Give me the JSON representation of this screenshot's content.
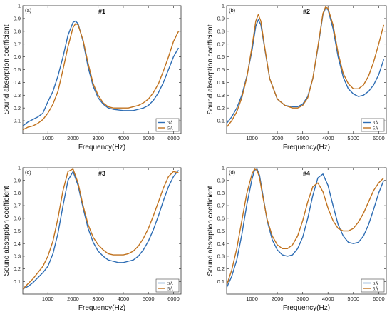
{
  "chart_data": [
    {
      "type": "line",
      "tag": "(a)",
      "title": "#1",
      "xlabel": "Frequency(Hz)",
      "ylabel": "Sound absorption coefficient",
      "xlim": [
        0,
        6300
      ],
      "ylim": [
        0,
        1
      ],
      "xticks": [
        1000,
        2000,
        3000,
        4000,
        5000,
        6000
      ],
      "yticks": [
        0.1,
        0.2,
        0.3,
        0.4,
        0.5,
        0.6,
        0.7,
        0.8,
        0.9,
        1
      ],
      "series": [
        {
          "name": "3Å",
          "color": "#2E6DB4",
          "x": [
            0,
            200,
            400,
            600,
            800,
            1000,
            1200,
            1400,
            1600,
            1800,
            2000,
            2100,
            2200,
            2400,
            2600,
            2800,
            3000,
            3200,
            3400,
            3600,
            3800,
            4000,
            4200,
            4400,
            4600,
            4800,
            5000,
            5200,
            5400,
            5600,
            5800,
            6000,
            6200
          ],
          "y": [
            0.06,
            0.09,
            0.11,
            0.13,
            0.16,
            0.25,
            0.33,
            0.45,
            0.6,
            0.77,
            0.87,
            0.88,
            0.86,
            0.72,
            0.52,
            0.37,
            0.28,
            0.23,
            0.2,
            0.19,
            0.185,
            0.18,
            0.18,
            0.18,
            0.19,
            0.2,
            0.22,
            0.26,
            0.32,
            0.4,
            0.5,
            0.6,
            0.67
          ]
        },
        {
          "name": "5Å",
          "color": "#C0721E",
          "x": [
            0,
            200,
            400,
            600,
            800,
            1000,
            1200,
            1400,
            1600,
            1800,
            2000,
            2100,
            2200,
            2400,
            2600,
            2800,
            3000,
            3200,
            3400,
            3600,
            3800,
            4000,
            4200,
            4400,
            4600,
            4800,
            5000,
            5200,
            5400,
            5600,
            5800,
            6000,
            6200
          ],
          "y": [
            0.03,
            0.05,
            0.06,
            0.08,
            0.11,
            0.16,
            0.23,
            0.33,
            0.5,
            0.68,
            0.83,
            0.86,
            0.85,
            0.73,
            0.55,
            0.39,
            0.3,
            0.24,
            0.21,
            0.2,
            0.2,
            0.2,
            0.2,
            0.21,
            0.22,
            0.24,
            0.27,
            0.32,
            0.39,
            0.49,
            0.6,
            0.72,
            0.8
          ]
        }
      ]
    },
    {
      "type": "line",
      "tag": "(b)",
      "title": "#2",
      "xlabel": "Frequency(Hz)",
      "ylabel": "Sound absorption coefficient",
      "xlim": [
        0,
        6300
      ],
      "ylim": [
        0,
        1
      ],
      "xticks": [
        1000,
        2000,
        3000,
        4000,
        5000,
        6000
      ],
      "yticks": [
        0.1,
        0.2,
        0.3,
        0.4,
        0.5,
        0.6,
        0.7,
        0.8,
        0.9,
        1
      ],
      "series": [
        {
          "name": "3Å",
          "color": "#2E6DB4",
          "x": [
            0,
            200,
            400,
            600,
            800,
            1000,
            1150,
            1250,
            1350,
            1500,
            1700,
            2000,
            2300,
            2600,
            2800,
            3000,
            3200,
            3400,
            3600,
            3800,
            3900,
            4000,
            4200,
            4400,
            4600,
            4800,
            5000,
            5200,
            5400,
            5600,
            5800,
            6000,
            6200
          ],
          "y": [
            0.08,
            0.13,
            0.2,
            0.3,
            0.45,
            0.65,
            0.84,
            0.89,
            0.85,
            0.67,
            0.43,
            0.27,
            0.22,
            0.21,
            0.21,
            0.23,
            0.29,
            0.43,
            0.67,
            0.93,
            0.98,
            0.97,
            0.82,
            0.6,
            0.44,
            0.35,
            0.31,
            0.29,
            0.3,
            0.33,
            0.38,
            0.46,
            0.58
          ]
        },
        {
          "name": "5Å",
          "color": "#C0721E",
          "x": [
            0,
            200,
            400,
            600,
            800,
            1000,
            1150,
            1250,
            1350,
            1500,
            1700,
            2000,
            2300,
            2600,
            2800,
            3000,
            3200,
            3400,
            3600,
            3800,
            3900,
            4000,
            4200,
            4400,
            4600,
            4800,
            5000,
            5200,
            5400,
            5600,
            5800,
            6000,
            6200
          ],
          "y": [
            0.05,
            0.1,
            0.17,
            0.28,
            0.44,
            0.68,
            0.88,
            0.93,
            0.88,
            0.68,
            0.43,
            0.27,
            0.22,
            0.2,
            0.2,
            0.22,
            0.28,
            0.43,
            0.68,
            0.94,
            0.99,
            0.98,
            0.85,
            0.63,
            0.47,
            0.39,
            0.35,
            0.35,
            0.38,
            0.45,
            0.56,
            0.7,
            0.85
          ]
        }
      ]
    },
    {
      "type": "line",
      "tag": "(c)",
      "title": "#3",
      "xlabel": "Frequency(Hz)",
      "ylabel": "Sound absorption coefficient",
      "xlim": [
        0,
        6300
      ],
      "ylim": [
        0,
        1
      ],
      "xticks": [
        1000,
        2000,
        3000,
        4000,
        5000,
        6000
      ],
      "yticks": [
        0.1,
        0.2,
        0.3,
        0.4,
        0.5,
        0.6,
        0.7,
        0.8,
        0.9,
        1
      ],
      "series": [
        {
          "name": "3Å",
          "color": "#2E6DB4",
          "x": [
            0,
            200,
            400,
            600,
            800,
            1000,
            1200,
            1400,
            1600,
            1800,
            2000,
            2200,
            2400,
            2600,
            2800,
            3000,
            3200,
            3400,
            3600,
            3800,
            4000,
            4200,
            4400,
            4600,
            4800,
            5000,
            5200,
            5400,
            5600,
            5800,
            6000,
            6200
          ],
          "y": [
            0.04,
            0.06,
            0.09,
            0.13,
            0.17,
            0.22,
            0.32,
            0.48,
            0.7,
            0.9,
            0.97,
            0.86,
            0.68,
            0.52,
            0.41,
            0.34,
            0.3,
            0.27,
            0.26,
            0.25,
            0.25,
            0.26,
            0.27,
            0.3,
            0.35,
            0.42,
            0.51,
            0.62,
            0.74,
            0.85,
            0.93,
            0.98
          ]
        },
        {
          "name": "5Å",
          "color": "#C0721E",
          "x": [
            0,
            200,
            400,
            600,
            800,
            1000,
            1200,
            1400,
            1600,
            1800,
            2000,
            2200,
            2400,
            2600,
            2800,
            3000,
            3200,
            3400,
            3600,
            3800,
            4000,
            4200,
            4400,
            4600,
            4800,
            5000,
            5200,
            5400,
            5600,
            5800,
            6000,
            6200
          ],
          "y": [
            0.04,
            0.08,
            0.12,
            0.17,
            0.22,
            0.3,
            0.42,
            0.6,
            0.82,
            0.97,
            0.99,
            0.88,
            0.7,
            0.55,
            0.45,
            0.39,
            0.35,
            0.32,
            0.31,
            0.31,
            0.31,
            0.32,
            0.34,
            0.38,
            0.44,
            0.52,
            0.62,
            0.73,
            0.84,
            0.93,
            0.97,
            0.96
          ]
        }
      ]
    },
    {
      "type": "line",
      "tag": "(d)",
      "title": "#4",
      "xlabel": "Frequency(Hz)",
      "ylabel": "Sound absorption coefficient",
      "xlim": [
        0,
        6300
      ],
      "ylim": [
        0,
        1
      ],
      "xticks": [
        1000,
        2000,
        3000,
        4000,
        5000,
        6000
      ],
      "yticks": [
        0.1,
        0.2,
        0.3,
        0.4,
        0.5,
        0.6,
        0.7,
        0.8,
        0.9,
        1
      ],
      "series": [
        {
          "name": "3Å",
          "color": "#2E6DB4",
          "x": [
            0,
            200,
            400,
            600,
            800,
            1000,
            1100,
            1200,
            1300,
            1400,
            1600,
            1800,
            2000,
            2200,
            2400,
            2600,
            2800,
            3000,
            3200,
            3400,
            3600,
            3800,
            4000,
            4200,
            4400,
            4600,
            4800,
            5000,
            5200,
            5400,
            5600,
            5800,
            6000,
            6200
          ],
          "y": [
            0.05,
            0.14,
            0.27,
            0.47,
            0.71,
            0.91,
            0.98,
            0.99,
            0.94,
            0.82,
            0.58,
            0.43,
            0.35,
            0.31,
            0.3,
            0.31,
            0.36,
            0.45,
            0.6,
            0.78,
            0.92,
            0.95,
            0.86,
            0.7,
            0.55,
            0.46,
            0.41,
            0.4,
            0.41,
            0.46,
            0.55,
            0.67,
            0.8,
            0.9
          ]
        },
        {
          "name": "5Å",
          "color": "#C0721E",
          "x": [
            0,
            200,
            400,
            600,
            800,
            1000,
            1100,
            1200,
            1300,
            1400,
            1600,
            1800,
            2000,
            2200,
            2400,
            2600,
            2800,
            3000,
            3200,
            3400,
            3600,
            3800,
            4000,
            4200,
            4400,
            4600,
            4800,
            5000,
            5200,
            5400,
            5600,
            5800,
            6000,
            6200
          ],
          "y": [
            0.07,
            0.19,
            0.36,
            0.58,
            0.8,
            0.95,
            0.99,
            0.98,
            0.92,
            0.8,
            0.59,
            0.46,
            0.39,
            0.36,
            0.36,
            0.39,
            0.46,
            0.58,
            0.73,
            0.85,
            0.88,
            0.81,
            0.68,
            0.58,
            0.52,
            0.5,
            0.5,
            0.52,
            0.57,
            0.64,
            0.73,
            0.82,
            0.88,
            0.92
          ]
        }
      ]
    }
  ]
}
